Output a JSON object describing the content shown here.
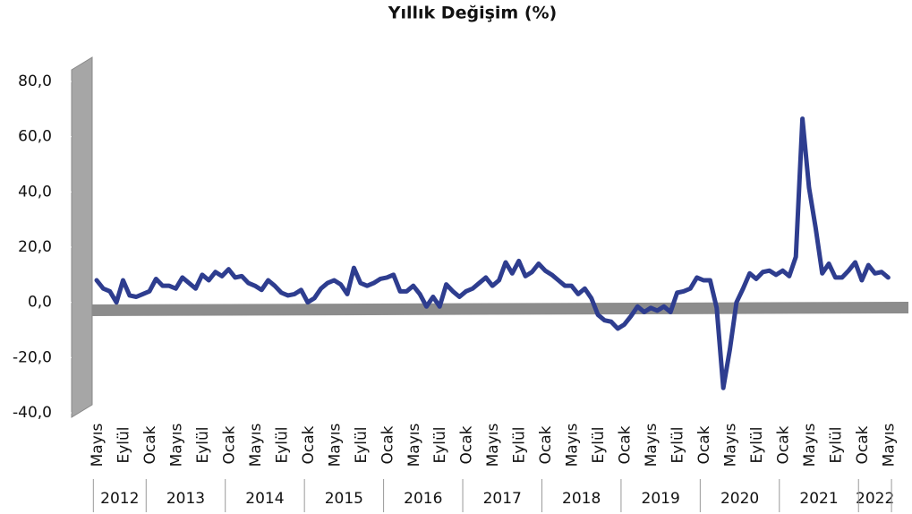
{
  "chart_data": {
    "type": "line",
    "title": "Yıllık Değişim (%)",
    "categories": [
      "Mayıs",
      null,
      null,
      null,
      "Eylül",
      null,
      null,
      null,
      "Ocak",
      null,
      null,
      null,
      "Mayıs",
      null,
      null,
      null,
      "Eylül",
      null,
      null,
      null,
      "Ocak",
      null,
      null,
      null,
      "Mayıs",
      null,
      null,
      null,
      "Eylül",
      null,
      null,
      null,
      "Ocak",
      null,
      null,
      null,
      "Mayıs",
      null,
      null,
      null,
      "Eylül",
      null,
      null,
      null,
      "Ocak",
      null,
      null,
      null,
      "Mayıs",
      null,
      null,
      null,
      "Eylül",
      null,
      null,
      null,
      "Ocak",
      null,
      null,
      null,
      "Mayıs",
      null,
      null,
      null,
      "Eylül",
      null,
      null,
      null,
      "Ocak",
      null,
      null,
      null,
      "Mayıs",
      null,
      null,
      null,
      "Eylül",
      null,
      null,
      null,
      "Ocak",
      null,
      null,
      null,
      "Mayıs",
      null,
      null,
      null,
      "Eylül",
      null,
      null,
      null,
      "Ocak",
      null,
      null,
      null,
      "Mayıs",
      null,
      null,
      null,
      "Eylül",
      null,
      null,
      null,
      "Ocak",
      null,
      null,
      null,
      "Mayıs",
      null,
      null,
      null,
      "Eylül",
      null,
      null,
      null,
      "Ocak",
      null,
      null,
      null,
      "Mayıs"
    ],
    "years": [
      "2012",
      "2013",
      "2014",
      "2015",
      "2016",
      "2017",
      "2018",
      "2019",
      "2020",
      "2021",
      "2022"
    ],
    "series": [
      {
        "name": "Yıllık Değişim",
        "color": "#2e3d8f",
        "values": [
          8,
          5,
          4,
          0,
          8,
          2.5,
          2,
          3,
          4,
          8.5,
          6,
          6,
          5,
          9,
          7,
          5,
          10,
          8,
          11,
          9.5,
          12,
          9,
          9.5,
          7,
          6,
          4.5,
          8,
          6,
          3.5,
          2.5,
          3,
          4.5,
          0,
          1.5,
          5,
          7,
          8,
          6.5,
          3,
          12.5,
          7,
          6,
          7,
          8.5,
          9,
          10,
          4,
          4,
          6,
          3,
          -1.5,
          2,
          -1.5,
          6.5,
          4,
          2,
          4,
          5,
          7,
          9,
          6,
          8,
          14.5,
          10.5,
          15,
          9.5,
          11,
          14,
          11.5,
          10,
          8,
          6,
          6,
          3,
          5,
          1.5,
          -4.5,
          -6.5,
          -7,
          -9.5,
          -8,
          -5,
          -1.5,
          -3.5,
          -2,
          -3,
          -1.5,
          -3.5,
          3.5,
          4,
          5,
          9,
          8,
          8,
          -2,
          -31,
          -17,
          0,
          5,
          10.5,
          8.5,
          11,
          11.5,
          10,
          11.5,
          9.5,
          16.5,
          66.5,
          41.5,
          27,
          10.5,
          14,
          9,
          9,
          11.5,
          14.5,
          8,
          13.5,
          10.5,
          11,
          9
        ]
      }
    ],
    "ylim": [
      -40,
      80
    ],
    "yticks": [
      {
        "value": -40,
        "label": "-40,0"
      },
      {
        "value": -20,
        "label": "-20,0"
      },
      {
        "value": 0,
        "label": "0,0"
      },
      {
        "value": 20,
        "label": "20,0"
      },
      {
        "value": 40,
        "label": "40,0"
      },
      {
        "value": 60,
        "label": "60,0"
      },
      {
        "value": 80,
        "label": "80,0"
      }
    ]
  }
}
